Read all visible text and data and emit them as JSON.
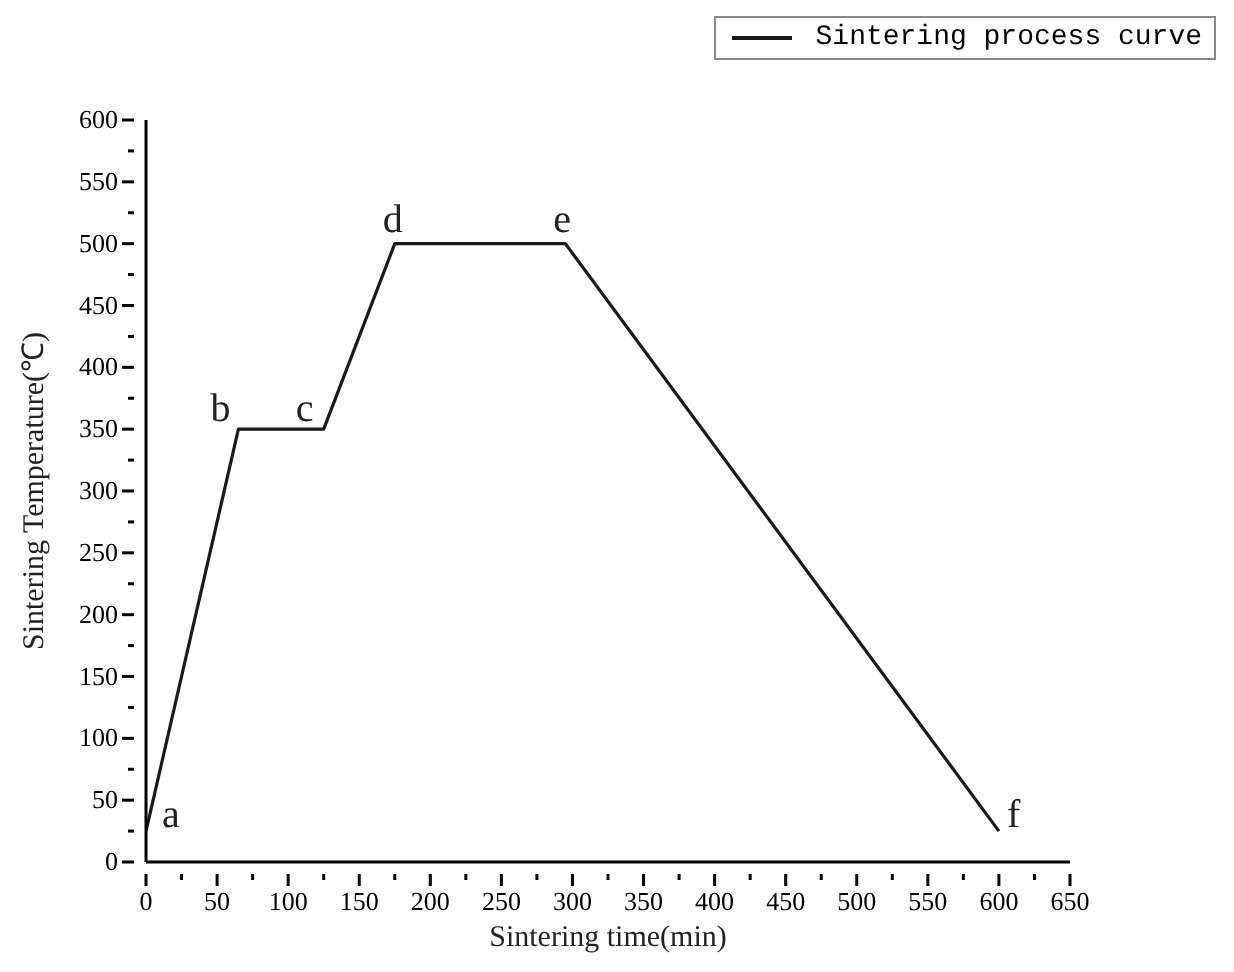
{
  "chart_data": {
    "type": "line",
    "xlabel": "Sintering time(min)",
    "ylabel": "Sintering Temperature(℃)",
    "x": [
      0,
      65,
      125,
      175,
      295,
      600
    ],
    "series": [
      {
        "name": "Sintering process curve",
        "color": "#1a1a1a",
        "values": [
          25,
          350,
          350,
          500,
          500,
          25
        ]
      }
    ],
    "xlim": [
      0,
      650
    ],
    "xticks": [
      0,
      {
        "value": 25,
        "label": null
      },
      50,
      {
        "value": 75,
        "label": null
      },
      100,
      {
        "value": 125,
        "label": null
      },
      150,
      {
        "value": 175,
        "label": null
      },
      200,
      {
        "value": 225,
        "label": null
      },
      250,
      {
        "value": 275,
        "label": null
      },
      300,
      {
        "value": 325,
        "label": null
      },
      350,
      {
        "value": 375,
        "label": null
      },
      400,
      {
        "value": 425,
        "label": null
      },
      450,
      {
        "value": 475,
        "label": null
      },
      500,
      {
        "value": 525,
        "label": null
      },
      550,
      {
        "value": 575,
        "label": null
      },
      600,
      {
        "value": 625,
        "label": null
      },
      650
    ],
    "ylim": [
      0,
      600
    ],
    "yticks": [
      0,
      {
        "value": 25,
        "label": null
      },
      50,
      {
        "value": 75,
        "label": null
      },
      100,
      {
        "value": 125,
        "label": null
      },
      150,
      {
        "value": 175,
        "label": null
      },
      200,
      {
        "value": 225,
        "label": null
      },
      250,
      {
        "value": 275,
        "label": null
      },
      300,
      {
        "value": 325,
        "label": null
      },
      350,
      {
        "value": 375,
        "label": null
      },
      400,
      {
        "value": 425,
        "label": null
      },
      450,
      {
        "value": 475,
        "label": null
      },
      500,
      {
        "value": 525,
        "label": null
      },
      550,
      {
        "value": 575,
        "label": null
      },
      600
    ],
    "annotations": [
      {
        "text": "a",
        "x": 0,
        "y": 25
      },
      {
        "text": "b",
        "x": 65,
        "y": 350
      },
      {
        "text": "c",
        "x": 125,
        "y": 350
      },
      {
        "text": "d",
        "x": 175,
        "y": 500
      },
      {
        "text": "e",
        "x": 295,
        "y": 500
      },
      {
        "text": "f",
        "x": 600,
        "y": 25
      }
    ],
    "legend": "top right",
    "marker": "none",
    "line_style": "solid"
  }
}
